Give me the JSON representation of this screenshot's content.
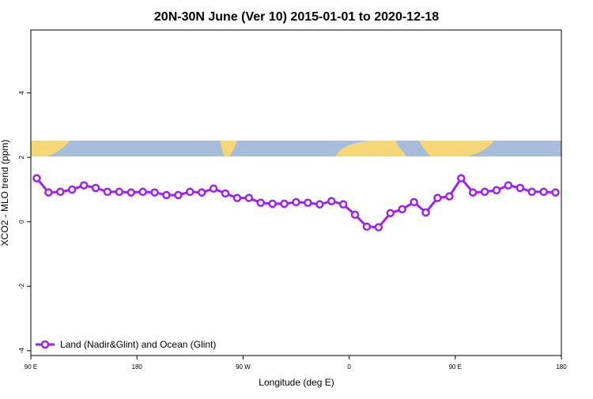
{
  "chart_data": {
    "type": "line",
    "title": "20N-30N June (Ver 10)   2015-01-01 to 2020-12-18",
    "x_label": "Longitude (deg E)",
    "y_label": "XCO2 - MLO trend (ppm)",
    "xlim": [
      90,
      540
    ],
    "ylim": [
      -4.15,
      5.95
    ],
    "xticks": [
      {
        "value": 90,
        "label": "90 E"
      },
      180,
      {
        "value": 270,
        "label": "90 W"
      },
      {
        "value": 360,
        "label": "0"
      },
      {
        "value": 450,
        "label": "90 E"
      },
      {
        "value": 540,
        "label": "180"
      }
    ],
    "yticks": [
      -4,
      -2,
      0,
      2,
      4
    ],
    "legend_position": "bottom-left",
    "x": [
      95,
      105,
      115,
      125,
      135,
      145,
      155,
      165,
      175,
      185,
      195,
      205,
      215,
      225,
      235,
      245,
      255,
      265,
      275,
      285,
      295,
      305,
      315,
      325,
      335,
      345,
      355,
      365,
      375,
      385,
      395,
      405,
      415,
      425,
      435,
      445,
      455,
      465,
      475,
      485,
      495,
      505,
      515,
      525,
      535
    ],
    "series": [
      {
        "name": "Land (Nadir&Glint) and Ocean (Glint)",
        "color": "#a020f0",
        "values": [
          1.35,
          0.91,
          0.93,
          1.0,
          1.13,
          1.05,
          0.93,
          0.93,
          0.91,
          0.93,
          0.91,
          0.83,
          0.83,
          0.93,
          0.91,
          1.03,
          0.88,
          0.74,
          0.74,
          0.59,
          0.56,
          0.56,
          0.61,
          0.59,
          0.54,
          0.64,
          0.54,
          0.22,
          -0.15,
          -0.17,
          0.27,
          0.39,
          0.61,
          0.29,
          0.74,
          0.79,
          1.35,
          0.91,
          0.93,
          0.98,
          1.13,
          1.05,
          0.93,
          0.93,
          0.91
        ]
      }
    ]
  }
}
